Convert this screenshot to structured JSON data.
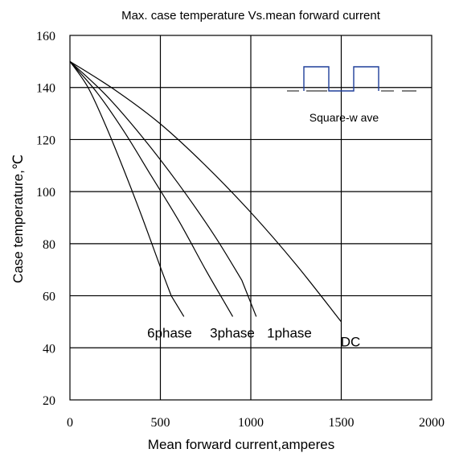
{
  "chart_data": {
    "type": "line",
    "title": "Max. case temperature Vs.mean forward current",
    "xlabel": "Mean forward current,amperes",
    "ylabel": "Case temperature,℃",
    "xlim": [
      0,
      2000
    ],
    "ylim": [
      20,
      160
    ],
    "xticks": [
      0,
      500,
      1000,
      1500,
      2000
    ],
    "yticks": [
      20,
      40,
      60,
      80,
      100,
      120,
      140,
      160
    ],
    "grid": true,
    "series": [
      {
        "name": "6phase",
        "x": [
          0,
          100,
          200,
          300,
          400,
          500,
          560
        ],
        "y": [
          150,
          140,
          125,
          108,
          90,
          71,
          60
        ],
        "label_anchor": [
          630,
          52
        ]
      },
      {
        "name": "3phase",
        "x": [
          0,
          150,
          300,
          450,
          600,
          750,
          850
        ],
        "y": [
          150,
          138,
          123,
          106,
          89,
          70,
          58
        ],
        "label_anchor": [
          900,
          52
        ]
      },
      {
        "name": "1phase",
        "x": [
          0,
          200,
          400,
          600,
          800,
          950
        ],
        "y": [
          150,
          137,
          121,
          103,
          83,
          66
        ],
        "label_anchor": [
          1030,
          52
        ]
      },
      {
        "name": "DC",
        "x": [
          0,
          250,
          500,
          750,
          1000,
          1250,
          1500
        ],
        "y": [
          150,
          139,
          126,
          110,
          92,
          72,
          50
        ],
        "label_anchor": [
          1500,
          50
        ]
      }
    ],
    "inset": {
      "waveform": "square",
      "label": "Square-w ave"
    }
  }
}
